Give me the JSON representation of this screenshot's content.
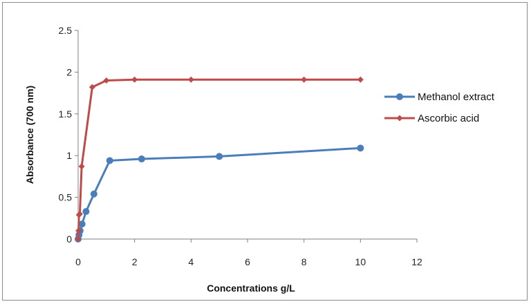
{
  "chart_data": {
    "type": "line",
    "title": "",
    "xlabel": "Concentrations g/L",
    "ylabel": "Absorbance (700 nm)",
    "xlim": [
      0,
      12
    ],
    "ylim": [
      0,
      2.5
    ],
    "x_ticks": [
      "0",
      "2",
      "4",
      "6",
      "8",
      "10",
      "12"
    ],
    "y_ticks": [
      "0",
      "0.5",
      "1",
      "1.5",
      "2",
      "2.5"
    ],
    "grid": false,
    "legend_position": "right",
    "series": [
      {
        "name": "Methanol extract",
        "color": "#4a7ebb",
        "marker": "circle",
        "points": [
          {
            "x": 0,
            "y": 0
          },
          {
            "x": 0.03,
            "y": 0.05
          },
          {
            "x": 0.07,
            "y": 0.1
          },
          {
            "x": 0.14,
            "y": 0.18
          },
          {
            "x": 0.28,
            "y": 0.33
          },
          {
            "x": 0.56,
            "y": 0.54
          },
          {
            "x": 1.12,
            "y": 0.94
          },
          {
            "x": 2.25,
            "y": 0.96
          },
          {
            "x": 5,
            "y": 0.99
          },
          {
            "x": 10,
            "y": 1.09
          }
        ]
      },
      {
        "name": "Ascorbic acid",
        "color": "#be4b48",
        "marker": "diamond",
        "points": [
          {
            "x": 0,
            "y": 0
          },
          {
            "x": 0.015,
            "y": 0.1
          },
          {
            "x": 0.03,
            "y": 0.29
          },
          {
            "x": 0.06,
            "y": 0.3
          },
          {
            "x": 0.125,
            "y": 0.87
          },
          {
            "x": 0.5,
            "y": 1.82
          },
          {
            "x": 1,
            "y": 1.9
          },
          {
            "x": 2,
            "y": 1.91
          },
          {
            "x": 4,
            "y": 1.91
          },
          {
            "x": 8,
            "y": 1.91
          },
          {
            "x": 10,
            "y": 1.91
          }
        ]
      }
    ]
  }
}
